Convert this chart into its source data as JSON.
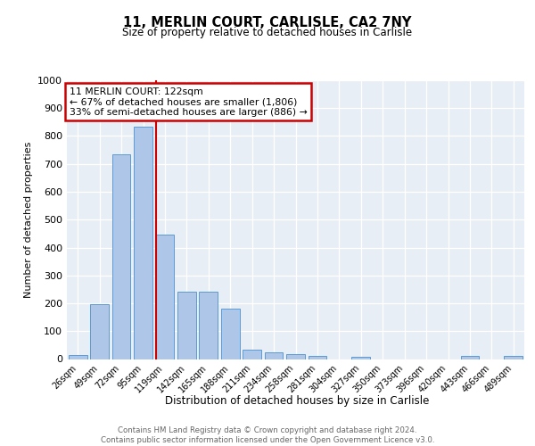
{
  "title1": "11, MERLIN COURT, CARLISLE, CA2 7NY",
  "title2": "Size of property relative to detached houses in Carlisle",
  "xlabel": "Distribution of detached houses by size in Carlisle",
  "ylabel": "Number of detached properties",
  "categories": [
    "26sqm",
    "49sqm",
    "72sqm",
    "95sqm",
    "119sqm",
    "142sqm",
    "165sqm",
    "188sqm",
    "211sqm",
    "234sqm",
    "258sqm",
    "281sqm",
    "304sqm",
    "327sqm",
    "350sqm",
    "373sqm",
    "396sqm",
    "420sqm",
    "443sqm",
    "466sqm",
    "489sqm"
  ],
  "values": [
    15,
    197,
    735,
    835,
    448,
    243,
    243,
    180,
    35,
    25,
    18,
    10,
    0,
    8,
    0,
    0,
    0,
    0,
    10,
    0,
    10
  ],
  "bar_color": "#aec6e8",
  "bar_edge_color": "#5b9bd5",
  "background_color": "#e8eef5",
  "grid_color": "#ffffff",
  "vline_x": 4,
  "vline_color": "#cc0000",
  "annotation_text": "11 MERLIN COURT: 122sqm\n← 67% of detached houses are smaller (1,806)\n33% of semi-detached houses are larger (886) →",
  "annotation_box_color": "#ffffff",
  "annotation_box_edge": "#cc0000",
  "footer_text": "Contains HM Land Registry data © Crown copyright and database right 2024.\nContains public sector information licensed under the Open Government Licence v3.0.",
  "ylim": [
    0,
    1000
  ],
  "yticks": [
    0,
    100,
    200,
    300,
    400,
    500,
    600,
    700,
    800,
    900,
    1000
  ]
}
